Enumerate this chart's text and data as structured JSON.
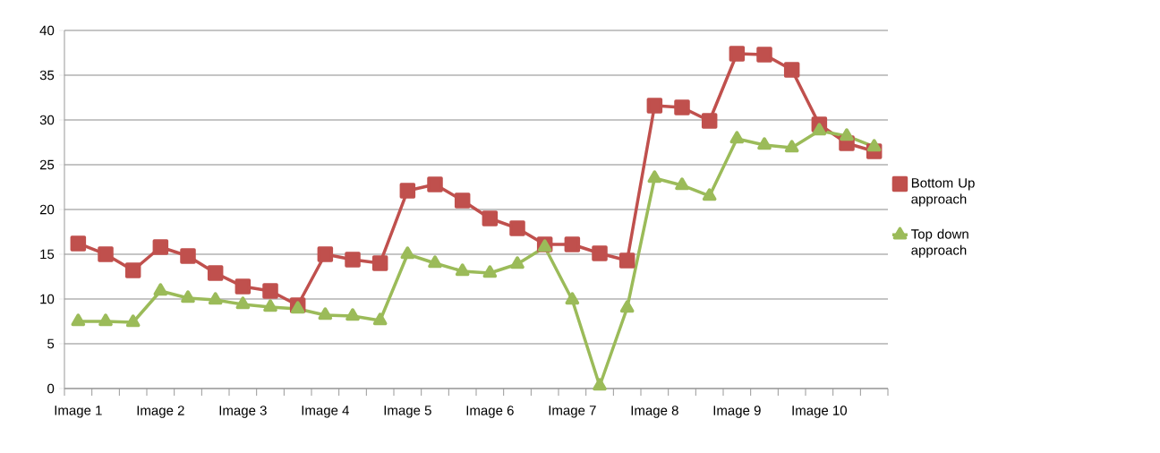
{
  "chart_data": {
    "type": "line",
    "categories": [
      "Image 1",
      null,
      null,
      "Image 2",
      null,
      null,
      "Image 3",
      null,
      null,
      "Image 4",
      null,
      null,
      "Image 5",
      null,
      null,
      "Image 6",
      null,
      null,
      "Image 7",
      null,
      null,
      "Image 8",
      null,
      null,
      "Image 9",
      null,
      null,
      "Image 10",
      null,
      null
    ],
    "series": [
      {
        "name": "Bottom Up approach",
        "color": "#c0504d",
        "marker": "square",
        "values": [
          16.2,
          15.0,
          13.2,
          15.8,
          14.8,
          12.9,
          11.4,
          10.9,
          9.3,
          15.0,
          14.4,
          14.0,
          22.1,
          22.8,
          21.0,
          19.0,
          17.9,
          16.1,
          16.1,
          15.1,
          14.3,
          31.6,
          31.4,
          29.9,
          37.4,
          37.3,
          35.6,
          29.5,
          27.4,
          26.5
        ]
      },
      {
        "name": "Top down  approach",
        "color": "#9bbb59",
        "marker": "triangle",
        "values": [
          7.5,
          7.5,
          7.4,
          10.9,
          10.1,
          9.9,
          9.4,
          9.1,
          8.9,
          8.2,
          8.1,
          7.6,
          15.0,
          14.0,
          13.1,
          12.9,
          13.9,
          15.8,
          9.9,
          0.3,
          9.0,
          23.5,
          22.7,
          21.5,
          27.9,
          27.2,
          26.9,
          28.8,
          28.2,
          27.0
        ]
      }
    ],
    "ylim": [
      0,
      40
    ],
    "yticks": [
      0,
      5,
      10,
      15,
      20,
      25,
      30,
      35,
      40
    ],
    "grid": "y",
    "legend": "right",
    "line_style": "solid"
  }
}
